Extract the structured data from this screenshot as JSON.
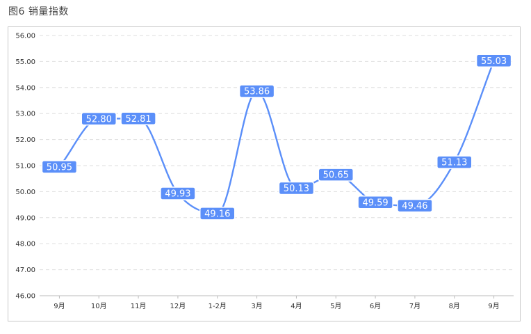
{
  "caption": "图6 销量指数",
  "chart_data": {
    "type": "line",
    "title": "",
    "xlabel": "",
    "ylabel": "",
    "categories": [
      "9月",
      "10月",
      "11月",
      "12月",
      "1-2月",
      "3月",
      "4月",
      "5月",
      "6月",
      "7月",
      "8月",
      "9月"
    ],
    "series": [
      {
        "values": [
          50.95,
          52.8,
          52.81,
          49.93,
          49.16,
          53.86,
          50.13,
          50.65,
          49.59,
          49.46,
          51.13,
          55.03
        ],
        "labels": [
          "50.95",
          "52.80",
          "52.81",
          "49.93",
          "49.16",
          "53.86",
          "50.13",
          "50.65",
          "49.59",
          "49.46",
          "51.13",
          "55.03"
        ]
      }
    ],
    "yticks": [
      "46.00",
      "47.00",
      "48.00",
      "49.00",
      "50.00",
      "51.00",
      "52.00",
      "53.00",
      "54.00",
      "55.00",
      "56.00"
    ],
    "ylim": [
      46,
      56
    ],
    "grid": true,
    "line_color": "#5b8ff9",
    "label_bg_color": "#5b8ff9",
    "label_text_color": "#ffffff"
  }
}
